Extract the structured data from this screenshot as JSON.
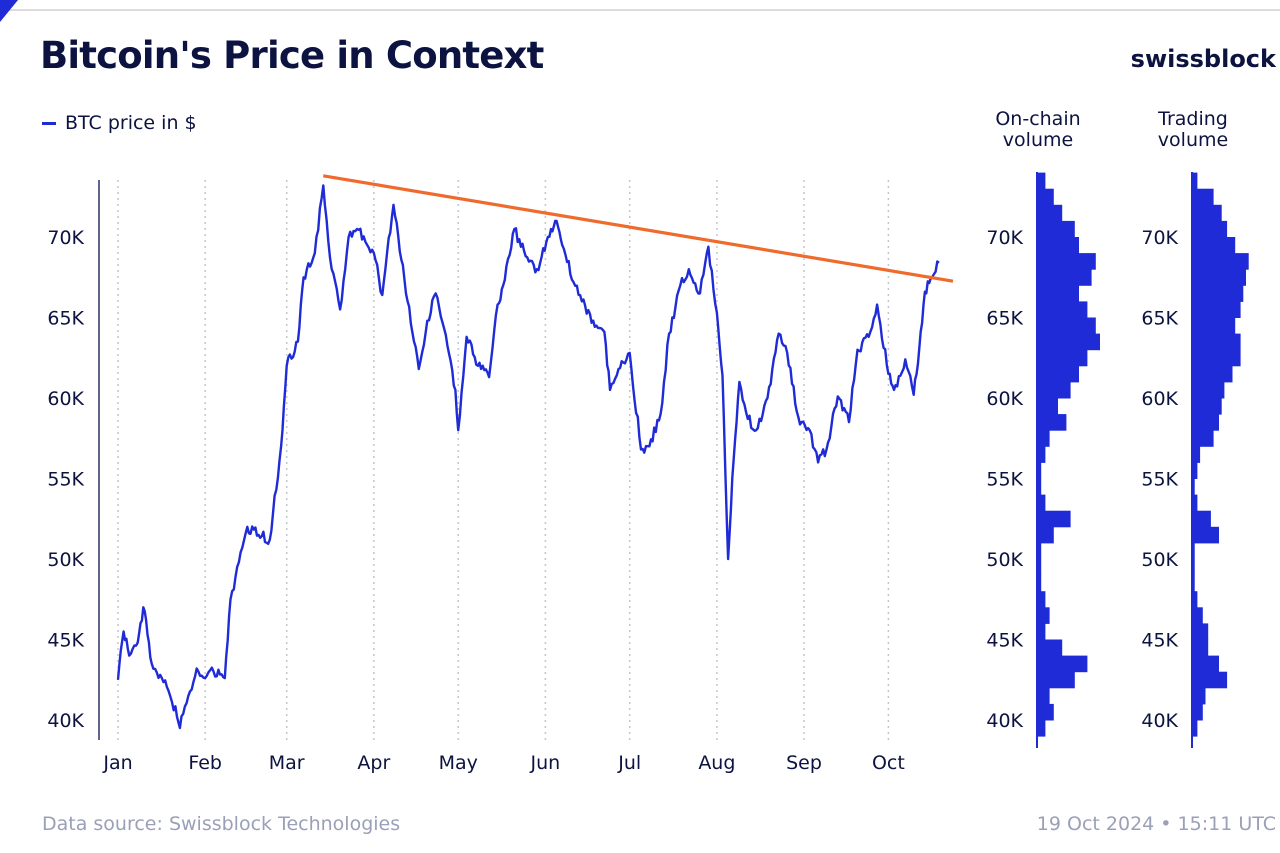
{
  "header": {
    "title": "Bitcoin's Price in Context",
    "brand": "swissblock"
  },
  "legend": {
    "label": "BTC price in $"
  },
  "panels": {
    "onchain_title": "On-chain\nvolume",
    "trading_title": "Trading\nvolume"
  },
  "footer": {
    "source": "Data source: Swissblock Technologies",
    "timestamp": "19 Oct 2024 • 15:11 UTC"
  },
  "colors": {
    "price": "#1f2bd6",
    "trendline": "#ef6a2d",
    "bars": "#1f2bd6",
    "axis_text": "#0c1340"
  },
  "chart_data": [
    {
      "type": "line",
      "x_unit": "2024 date",
      "x_ticks": [
        "Jan",
        "Feb",
        "Mar",
        "Apr",
        "May",
        "Jun",
        "Jul",
        "Aug",
        "Sep",
        "Oct"
      ],
      "y_ticks": [
        "40K",
        "45K",
        "50K",
        "55K",
        "60K",
        "65K",
        "70K"
      ],
      "y_tick_values": [
        40000,
        45000,
        50000,
        55000,
        60000,
        65000,
        70000
      ],
      "xlim": [
        "2024-01-01",
        "2024-10-19"
      ],
      "ylim": [
        38800,
        74000
      ],
      "grid": "vertical dotted at month starts",
      "series": [
        {
          "name": "BTC price in $",
          "x": [
            "2024-01-01",
            "2024-01-03",
            "2024-01-05",
            "2024-01-08",
            "2024-01-10",
            "2024-01-11",
            "2024-01-13",
            "2024-01-16",
            "2024-01-19",
            "2024-01-22",
            "2024-01-23",
            "2024-01-26",
            "2024-01-29",
            "2024-02-01",
            "2024-02-04",
            "2024-02-08",
            "2024-02-10",
            "2024-02-13",
            "2024-02-16",
            "2024-02-20",
            "2024-02-24",
            "2024-02-28",
            "2024-03-01",
            "2024-03-05",
            "2024-03-07",
            "2024-03-11",
            "2024-03-14",
            "2024-03-17",
            "2024-03-20",
            "2024-03-23",
            "2024-03-26",
            "2024-03-29",
            "2024-04-01",
            "2024-04-04",
            "2024-04-08",
            "2024-04-13",
            "2024-04-17",
            "2024-04-20",
            "2024-04-23",
            "2024-04-26",
            "2024-04-30",
            "2024-05-01",
            "2024-05-04",
            "2024-05-08",
            "2024-05-12",
            "2024-05-15",
            "2024-05-17",
            "2024-05-21",
            "2024-05-25",
            "2024-05-29",
            "2024-06-03",
            "2024-06-05",
            "2024-06-07",
            "2024-06-11",
            "2024-06-14",
            "2024-06-18",
            "2024-06-22",
            "2024-06-24",
            "2024-06-27",
            "2024-07-01",
            "2024-07-05",
            "2024-07-08",
            "2024-07-12",
            "2024-07-15",
            "2024-07-19",
            "2024-07-22",
            "2024-07-26",
            "2024-07-29",
            "2024-08-01",
            "2024-08-03",
            "2024-08-05",
            "2024-08-07",
            "2024-08-09",
            "2024-08-12",
            "2024-08-15",
            "2024-08-19",
            "2024-08-23",
            "2024-08-26",
            "2024-08-30",
            "2024-09-03",
            "2024-09-06",
            "2024-09-09",
            "2024-09-13",
            "2024-09-17",
            "2024-09-20",
            "2024-09-24",
            "2024-09-27",
            "2024-10-01",
            "2024-10-03",
            "2024-10-07",
            "2024-10-10",
            "2024-10-12",
            "2024-10-14",
            "2024-10-16",
            "2024-10-19"
          ],
          "y": [
            42500,
            45500,
            44000,
            44800,
            47000,
            46200,
            43500,
            42800,
            41800,
            40200,
            39500,
            41500,
            43200,
            42600,
            43000,
            42600,
            47500,
            49800,
            52000,
            51500,
            51200,
            57000,
            62000,
            63500,
            67500,
            69000,
            73200,
            68000,
            65500,
            70000,
            70500,
            69700,
            69000,
            66400,
            72000,
            66000,
            61800,
            64800,
            66500,
            64300,
            60500,
            58000,
            63800,
            62000,
            61300,
            65800,
            67000,
            70500,
            68800,
            68000,
            70500,
            71000,
            69500,
            67200,
            66000,
            64800,
            64100,
            60500,
            61800,
            62800,
            56800,
            57000,
            59000,
            64000,
            67000,
            68000,
            66500,
            69400,
            65300,
            61400,
            50000,
            56300,
            61000,
            58700,
            58000,
            60000,
            64000,
            62800,
            58800,
            58000,
            56000,
            56800,
            60100,
            58500,
            63000,
            63800,
            65800,
            61500,
            60500,
            62400,
            60200,
            63100,
            66600,
            67400,
            68400
          ]
        }
      ],
      "trendline": {
        "x": [
          "2024-03-14",
          "2024-10-19"
        ],
        "y": [
          73800,
          67400
        ]
      }
    },
    {
      "type": "bar",
      "orientation": "horizontal",
      "title": "On-chain\nvolume",
      "y_ticks": [
        "40K",
        "45K",
        "50K",
        "55K",
        "60K",
        "65K",
        "70K"
      ],
      "ylim": [
        38800,
        74000
      ],
      "bin_size": 1000,
      "bins": [
        39000,
        40000,
        41000,
        42000,
        43000,
        44000,
        45000,
        46000,
        47000,
        48000,
        49000,
        50000,
        51000,
        52000,
        53000,
        54000,
        55000,
        56000,
        57000,
        58000,
        59000,
        60000,
        61000,
        62000,
        63000,
        64000,
        65000,
        66000,
        67000,
        68000,
        69000,
        70000,
        71000,
        72000,
        73000
      ],
      "values": [
        2,
        4,
        3,
        9,
        12,
        6,
        2,
        3,
        2,
        1,
        1,
        1,
        4,
        8,
        2,
        1,
        1,
        2,
        3,
        7,
        5,
        8,
        10,
        12,
        15,
        14,
        12,
        10,
        13,
        14,
        10,
        9,
        6,
        4,
        2
      ]
    },
    {
      "type": "bar",
      "orientation": "horizontal",
      "title": "Trading\nvolume",
      "y_ticks": [
        "40K",
        "45K",
        "50K",
        "55K",
        "60K",
        "65K",
        "70K"
      ],
      "ylim": [
        38800,
        74000
      ],
      "bin_size": 1000,
      "bins": [
        39000,
        40000,
        41000,
        42000,
        43000,
        44000,
        45000,
        46000,
        47000,
        48000,
        49000,
        50000,
        51000,
        52000,
        53000,
        54000,
        55000,
        56000,
        57000,
        58000,
        59000,
        60000,
        61000,
        62000,
        63000,
        64000,
        65000,
        66000,
        67000,
        68000,
        69000,
        70000,
        71000,
        72000,
        73000
      ],
      "values": [
        2,
        4,
        5,
        13,
        10,
        6,
        6,
        4,
        2,
        1,
        1,
        1,
        10,
        7,
        2,
        1,
        2,
        3,
        8,
        10,
        11,
        12,
        15,
        18,
        18,
        16,
        18,
        19,
        20,
        21,
        16,
        13,
        11,
        8,
        2
      ]
    }
  ]
}
